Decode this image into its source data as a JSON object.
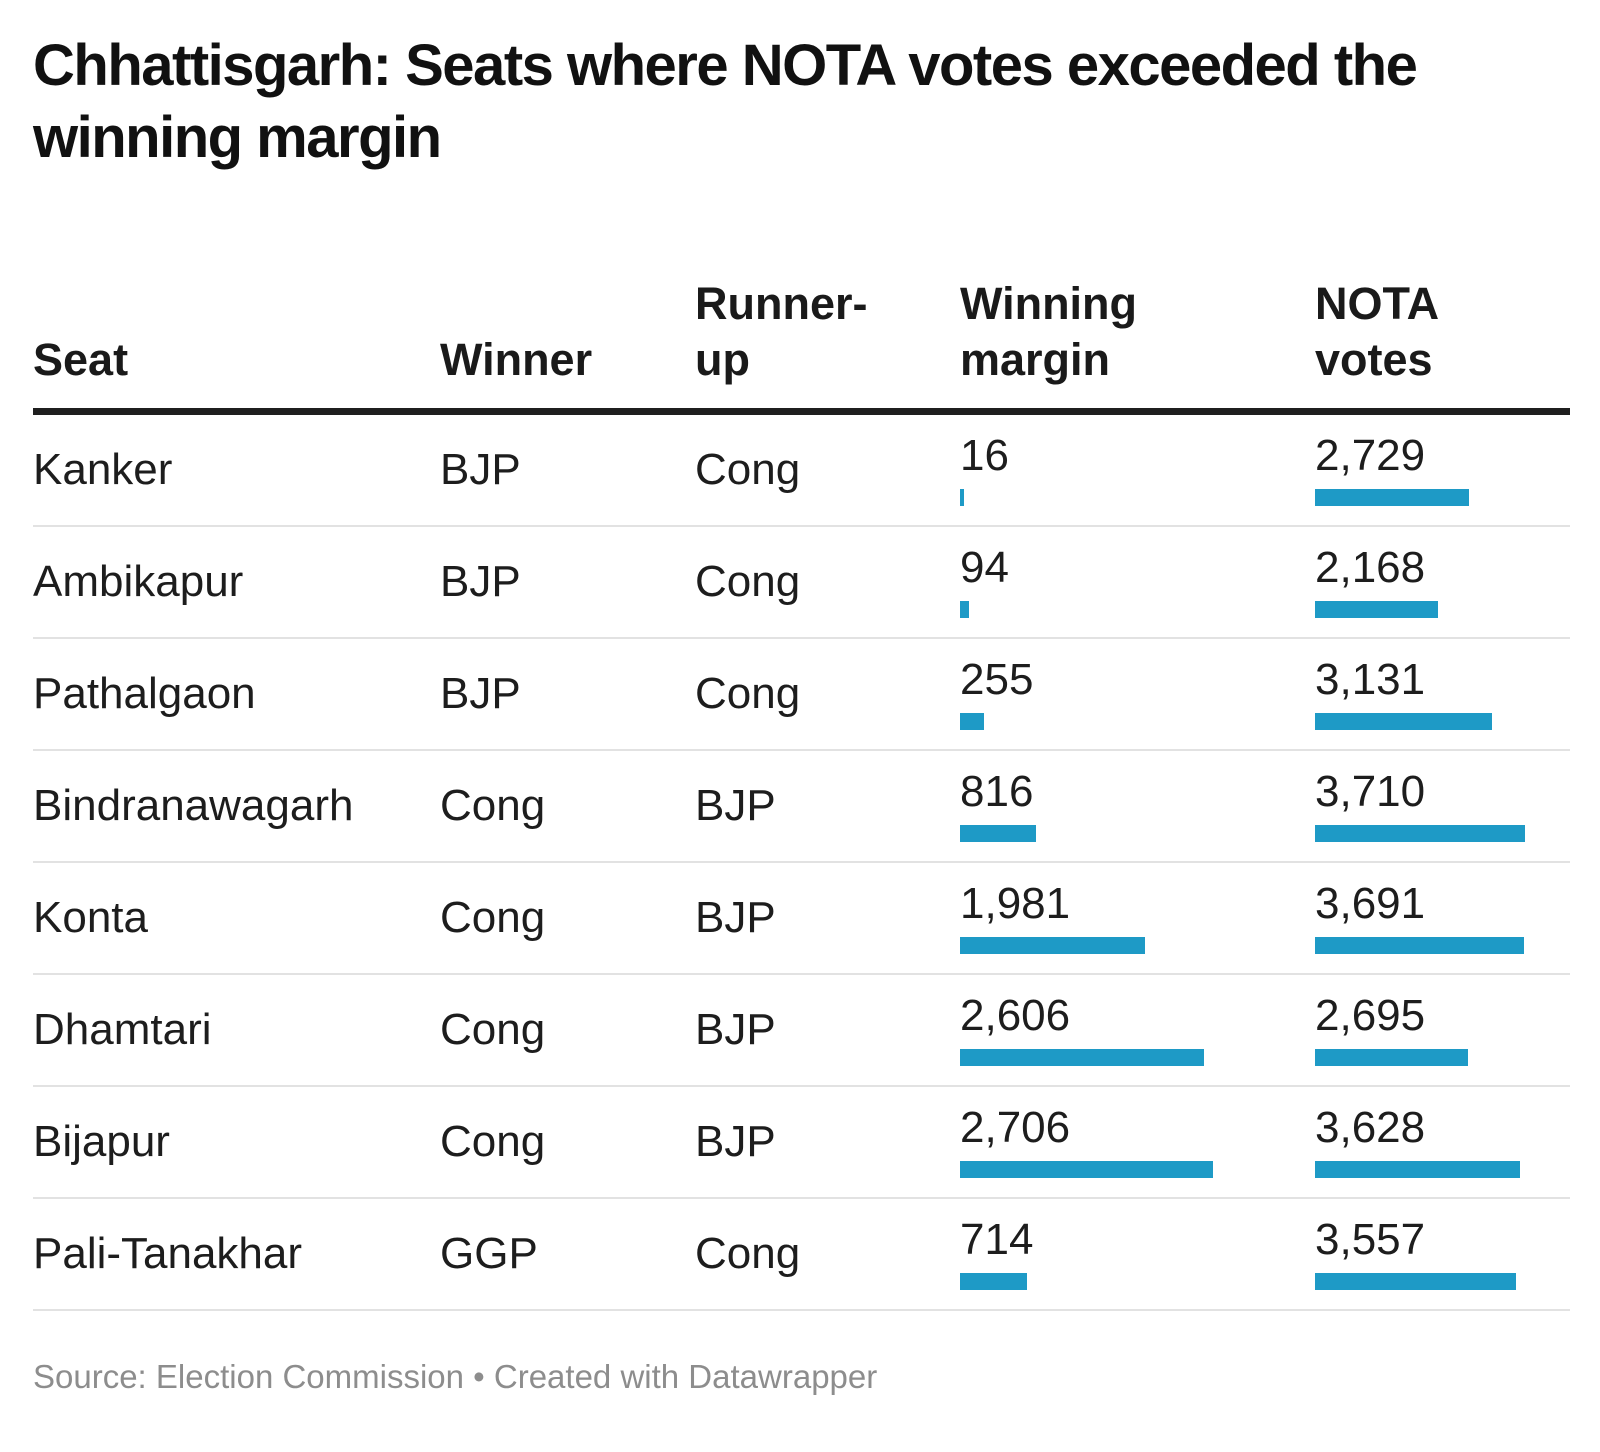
{
  "header": {
    "title": "Chhattisgarh: Seats where NOTA votes exceeded the winning margin"
  },
  "footer": {
    "text": "Source: Election Commission • Created with Datawrapper"
  },
  "style": {
    "bar_color": "#1e9ac6",
    "rule_color": "#1f1f1f",
    "separator_color": "#e2e2e2"
  },
  "chart_data": {
    "type": "table",
    "title": "Chhattisgarh: Seats where NOTA votes exceeded the winning margin",
    "columns": [
      "Seat",
      "Winner",
      "Runner-up",
      "Winning margin",
      "NOTA votes"
    ],
    "bar_columns": [
      "Winning margin",
      "NOTA votes"
    ],
    "legend_position": "none",
    "grid": "row-separators",
    "rows": [
      {
        "seat": "Kanker",
        "winner": "BJP",
        "runner_up": "Cong",
        "winning_margin": 16,
        "nota_votes": 2729
      },
      {
        "seat": "Ambikapur",
        "winner": "BJP",
        "runner_up": "Cong",
        "winning_margin": 94,
        "nota_votes": 2168
      },
      {
        "seat": "Pathalgaon",
        "winner": "BJP",
        "runner_up": "Cong",
        "winning_margin": 255,
        "nota_votes": 3131
      },
      {
        "seat": "Bindranawagarh",
        "winner": "Cong",
        "runner_up": "BJP",
        "winning_margin": 816,
        "nota_votes": 3710
      },
      {
        "seat": "Konta",
        "winner": "Cong",
        "runner_up": "BJP",
        "winning_margin": 1981,
        "nota_votes": 3691
      },
      {
        "seat": "Dhamtari",
        "winner": "Cong",
        "runner_up": "BJP",
        "winning_margin": 2606,
        "nota_votes": 2695
      },
      {
        "seat": "Bijapur",
        "winner": "Cong",
        "runner_up": "BJP",
        "winning_margin": 2706,
        "nota_votes": 3628
      },
      {
        "seat": "Pali-Tanakhar",
        "winner": "GGP",
        "runner_up": "Cong",
        "winning_margin": 714,
        "nota_votes": 3557
      }
    ]
  }
}
